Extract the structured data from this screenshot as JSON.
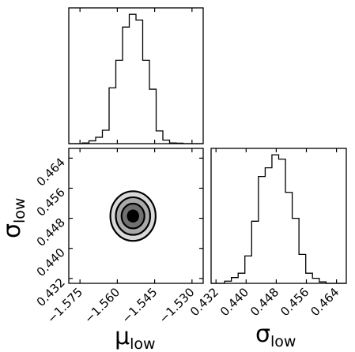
{
  "chart_data": {
    "type": "corner",
    "parameters": [
      {
        "symbol": "μ",
        "subscript": "low"
      },
      {
        "symbol": "σ",
        "subscript": "low"
      }
    ],
    "x_ticks": [
      {
        "value": -1.575,
        "label": "−1.575"
      },
      {
        "value": -1.56,
        "label": "−1.560"
      },
      {
        "value": -1.545,
        "label": "−1.545"
      },
      {
        "value": -1.53,
        "label": "−1.530"
      }
    ],
    "sigma_ticks": [
      {
        "value": 0.432,
        "label": "0.432"
      },
      {
        "value": 0.44,
        "label": "0.440"
      },
      {
        "value": 0.448,
        "label": "0.448"
      },
      {
        "value": 0.456,
        "label": "0.456"
      },
      {
        "value": 0.464,
        "label": "0.464"
      }
    ],
    "ranges": {
      "mu": [
        -1.5795,
        -1.5255
      ],
      "sigma": [
        0.4307,
        0.4666
      ]
    },
    "hist_mu": {
      "edges": [
        -1.5795,
        -1.5768,
        -1.5741,
        -1.5714,
        -1.5687,
        -1.566,
        -1.5633,
        -1.5606,
        -1.5579,
        -1.5552,
        -1.5525,
        -1.5498,
        -1.5471,
        -1.5444,
        -1.5417,
        -1.539,
        -1.5363,
        -1.5336,
        -1.5309,
        -1.5282,
        -1.5255
      ],
      "counts": [
        0,
        0,
        0.5,
        2,
        4.5,
        9.5,
        39.5,
        59,
        82.5,
        91.5,
        87.5,
        59,
        38.5,
        9,
        2.5,
        0.5,
        0.3,
        0,
        0,
        0
      ]
    },
    "hist_sigma": {
      "edges": [
        0.4307,
        0.43249,
        0.43429,
        0.43608,
        0.43788,
        0.43967,
        0.44147,
        0.44326,
        0.44506,
        0.44685,
        0.44865,
        0.45044,
        0.45224,
        0.45403,
        0.45583,
        0.45762,
        0.45942,
        0.46121,
        0.46301,
        0.4648,
        0.4666
      ],
      "counts": [
        0,
        0,
        1.5,
        4,
        7,
        19,
        43,
        74,
        80,
        89,
        86,
        63,
        45,
        20,
        7,
        3.5,
        1,
        0,
        0,
        0
      ]
    },
    "density_2d": {
      "center": {
        "mu": -1.5537,
        "sigma": 0.4486
      },
      "contour_semi_axes": [
        {
          "mu": 0.0021,
          "sigma": 0.0015
        },
        {
          "mu": 0.0046,
          "sigma": 0.0033
        },
        {
          "mu": 0.0069,
          "sigma": 0.005
        },
        {
          "mu": 0.0091,
          "sigma": 0.0066
        }
      ],
      "fill_colors": [
        "#d9d9d9",
        "#a9a9a9",
        "#707070",
        "#333333"
      ]
    }
  }
}
